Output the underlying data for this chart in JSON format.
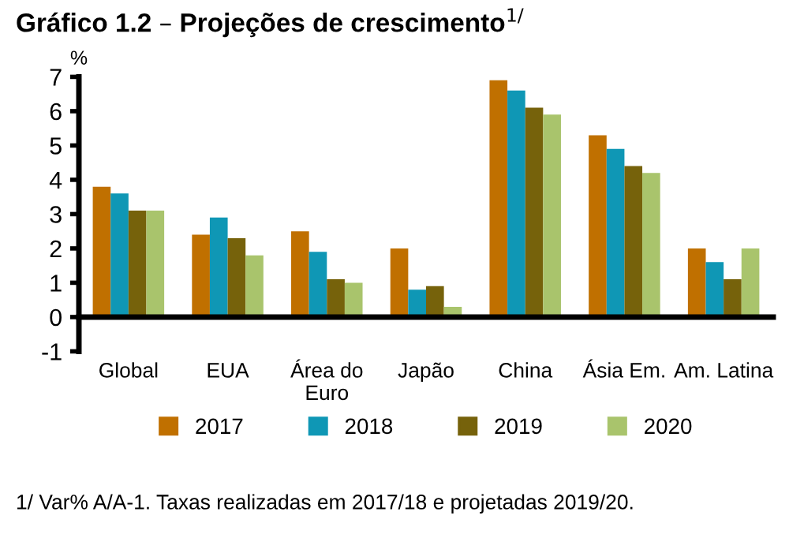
{
  "chart_data": {
    "type": "bar",
    "title": "Gráfico 1.2 – Projeções de crescimento$^{1/}$",
    "ylabel": "%",
    "categories": [
      "Global",
      "EUA",
      "Área do\nEuro",
      "Japão",
      "China",
      "Ásia Em.",
      "Am. Latina"
    ],
    "series": [
      {
        "name": "2017",
        "color": "#c07000",
        "values": [
          3.8,
          2.4,
          2.5,
          2.0,
          6.9,
          5.3,
          2.0
        ]
      },
      {
        "name": "2018",
        "color": "#0f97b5",
        "values": [
          3.6,
          2.9,
          1.9,
          0.8,
          6.6,
          4.9,
          1.6
        ]
      },
      {
        "name": "2019",
        "color": "#76620b",
        "values": [
          3.1,
          2.3,
          1.1,
          0.9,
          6.1,
          4.4,
          1.1
        ]
      },
      {
        "name": "2020",
        "color": "#a9c46c",
        "values": [
          3.1,
          1.8,
          1.0,
          0.3,
          5.9,
          4.2,
          2.0
        ]
      }
    ],
    "ylim": [
      -1,
      7
    ],
    "yticks": [
      -1,
      0,
      1,
      2,
      3,
      4,
      5,
      6,
      7
    ],
    "grid": false,
    "legend": "bottom",
    "annotations": [
      "1/ Var% A/A-1. Taxas realizadas em 2017/18 e projetadas 2019/20."
    ]
  }
}
